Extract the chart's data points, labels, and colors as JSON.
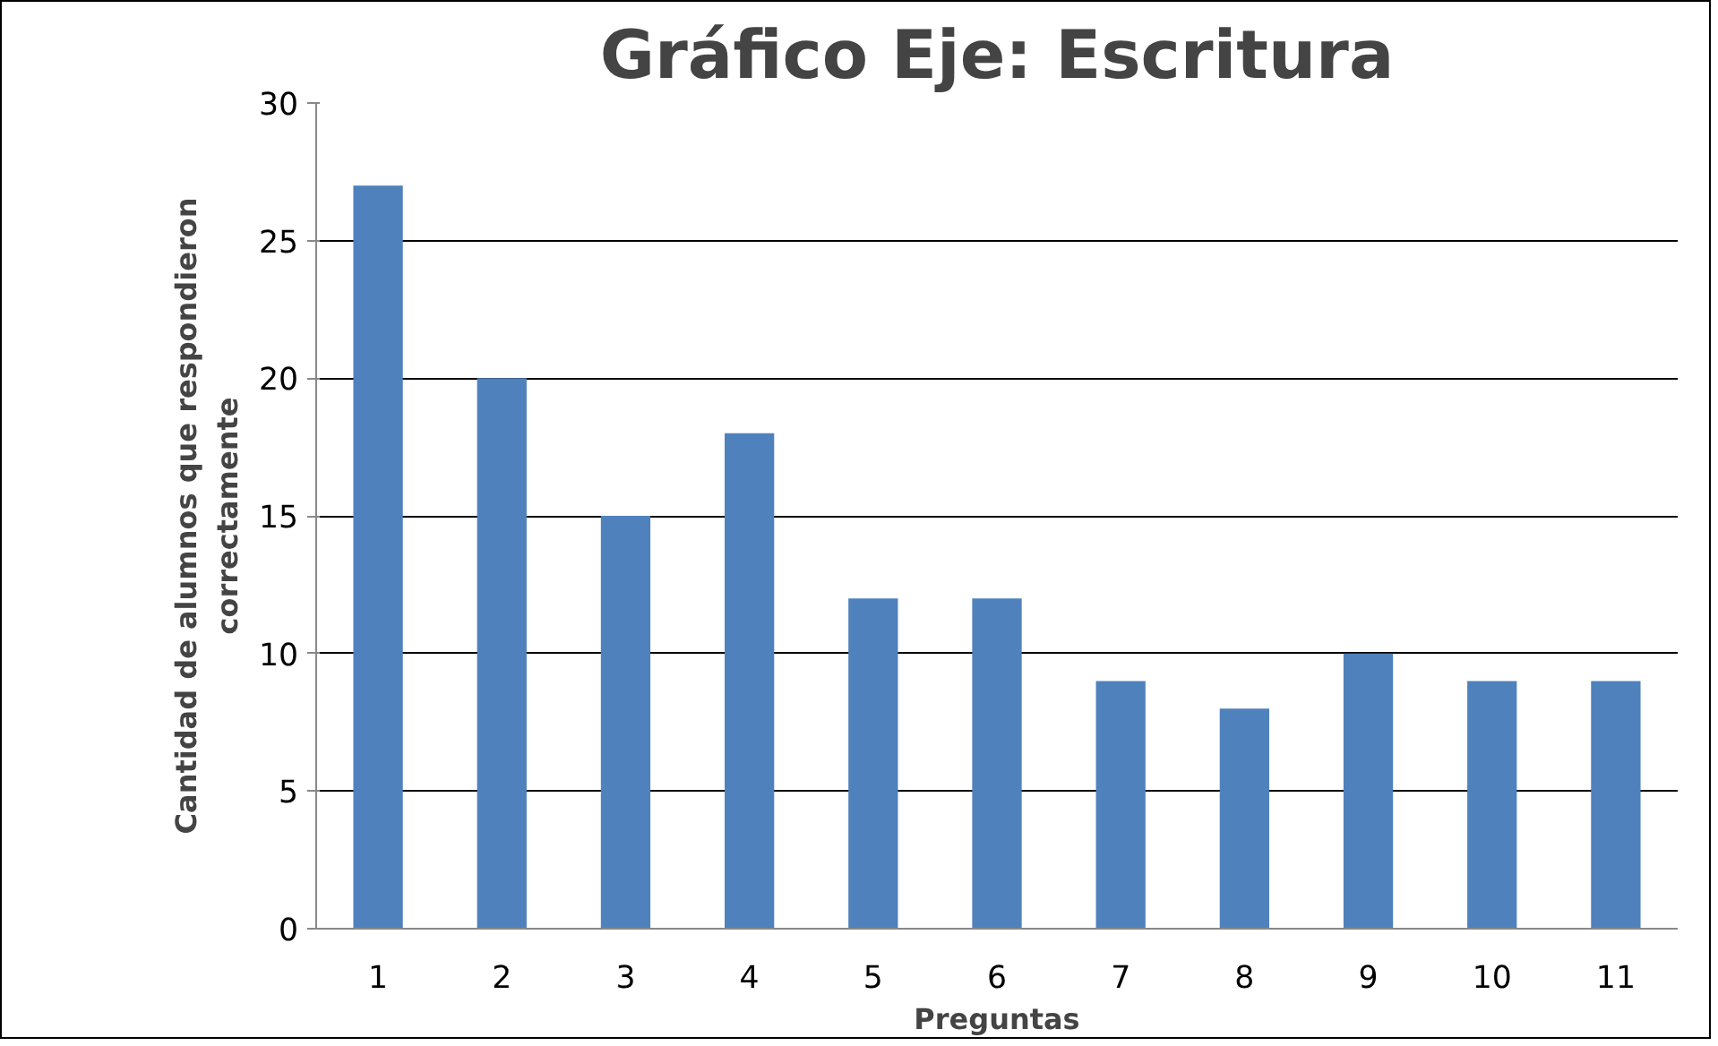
{
  "chart_data": {
    "type": "bar",
    "title": "Gráfico Eje: Escritura",
    "xlabel": "Preguntas",
    "ylabel": "Cantidad de alumnos que respondieron\ncorrectamente",
    "categories": [
      "1",
      "2",
      "3",
      "4",
      "5",
      "6",
      "7",
      "8",
      "9",
      "10",
      "11"
    ],
    "values": [
      27,
      20,
      15,
      18,
      12,
      12,
      9,
      8,
      10,
      9,
      9
    ],
    "color": "#4f81bd",
    "ylim": [
      0,
      30
    ],
    "yticks": [
      0,
      5,
      10,
      15,
      20,
      25,
      30
    ],
    "grid": "y"
  }
}
